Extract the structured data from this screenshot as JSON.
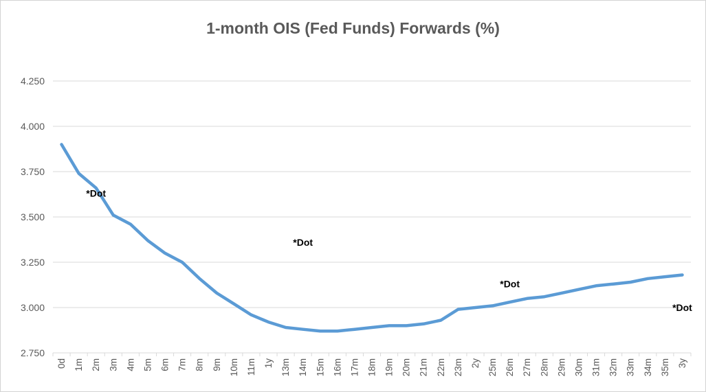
{
  "colors": {
    "line": "#5B9BD5",
    "gridline": "#D9D9D9",
    "axis_label": "#595959",
    "title": "#595959",
    "annotation": "#000000",
    "chart_border": "#D3D3D3",
    "background": "#FFFFFF"
  },
  "chart_data": {
    "type": "line",
    "title": "1-month OIS (Fed Funds) Forwards (%)",
    "categories": [
      "0d",
      "1m",
      "2m",
      "3m",
      "4m",
      "5m",
      "6m",
      "7m",
      "8m",
      "9m",
      "10m",
      "11m",
      "1y",
      "13m",
      "14m",
      "15m",
      "16m",
      "17m",
      "18m",
      "19m",
      "20m",
      "21m",
      "22m",
      "23m",
      "2y",
      "25m",
      "26m",
      "27m",
      "28m",
      "29m",
      "30m",
      "31m",
      "32m",
      "33m",
      "34m",
      "35m",
      "3y"
    ],
    "series": [
      {
        "values": [
          3.9,
          3.74,
          3.66,
          3.51,
          3.46,
          3.37,
          3.3,
          3.25,
          3.16,
          3.08,
          3.02,
          2.96,
          2.92,
          2.89,
          2.88,
          2.87,
          2.87,
          2.88,
          2.89,
          2.9,
          2.9,
          2.91,
          2.93,
          2.99,
          3.0,
          3.01,
          3.03,
          3.05,
          3.06,
          3.08,
          3.1,
          3.12,
          3.13,
          3.14,
          3.16,
          3.17,
          3.18
        ]
      }
    ],
    "ylim": [
      2.75,
      4.25
    ],
    "ytick_step": 0.25,
    "ytick_labels": [
      "4.250",
      "4.000",
      "3.750",
      "3.500",
      "3.250",
      "3.000",
      "2.750"
    ],
    "grid": "horizontal",
    "legend": "none",
    "annotations": [
      {
        "label": "*Dot",
        "x": "2m",
        "y": 3.63
      },
      {
        "label": "*Dot",
        "x": "14m",
        "y": 3.36
      },
      {
        "label": "*Dot",
        "x": "26m",
        "y": 3.13
      },
      {
        "label": "*Dot",
        "x": "3y",
        "y": 3.0
      }
    ]
  }
}
